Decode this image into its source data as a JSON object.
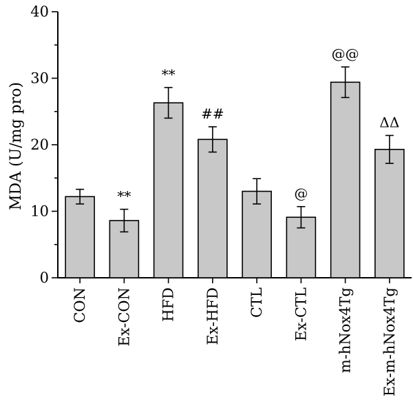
{
  "chart_data": {
    "type": "bar",
    "title": "",
    "xlabel": "",
    "ylabel": "MDA (U/mg pro)",
    "ylim": [
      0,
      40
    ],
    "yticks": [
      0,
      10,
      20,
      30,
      40
    ],
    "grid": false,
    "legend": "none",
    "bar_color": "#c8c8c8",
    "categories": [
      "CON",
      "Ex-CON",
      "HFD",
      "Ex-HFD",
      "CTL",
      "Ex-CTL",
      "m-hNox4Tg",
      "Ex-m-hNox4Tg"
    ],
    "values": [
      12.2,
      8.6,
      26.3,
      20.8,
      13.0,
      9.1,
      29.4,
      19.3
    ],
    "errors": [
      1.1,
      1.7,
      2.3,
      1.9,
      1.9,
      1.6,
      2.3,
      2.1
    ],
    "annotations": [
      "",
      "**",
      "**",
      "##",
      "",
      "@",
      "@@",
      "ΔΔ"
    ]
  }
}
